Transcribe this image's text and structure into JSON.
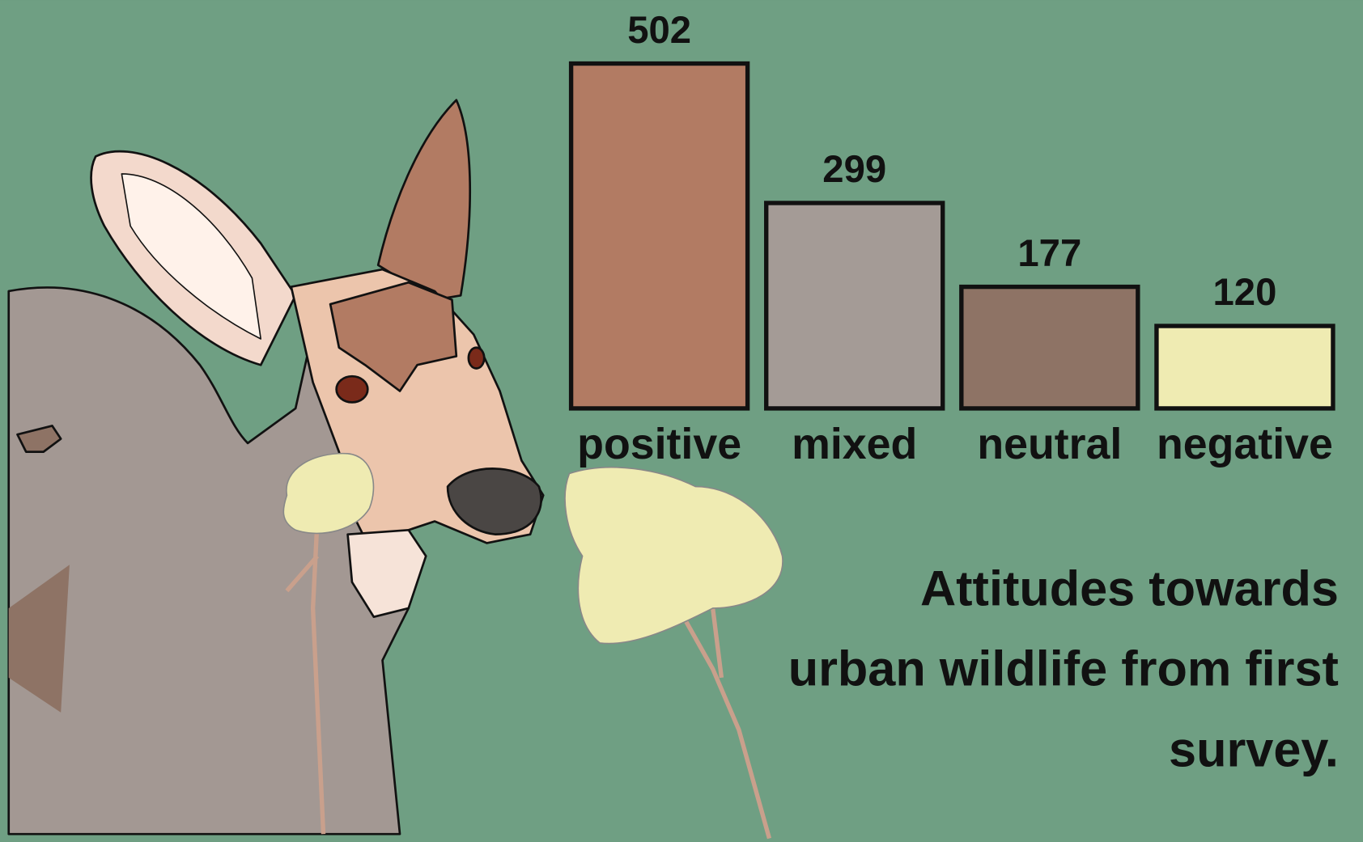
{
  "chart_data": {
    "type": "bar",
    "title": "Attitudes towards urban wildlife from first survey.",
    "categories": [
      "positive",
      "mixed",
      "neutral",
      "negative"
    ],
    "values": [
      502,
      299,
      177,
      120
    ],
    "colors": [
      "#b27b63",
      "#a49b96",
      "#8e7365",
      "#efebb2"
    ]
  }
}
